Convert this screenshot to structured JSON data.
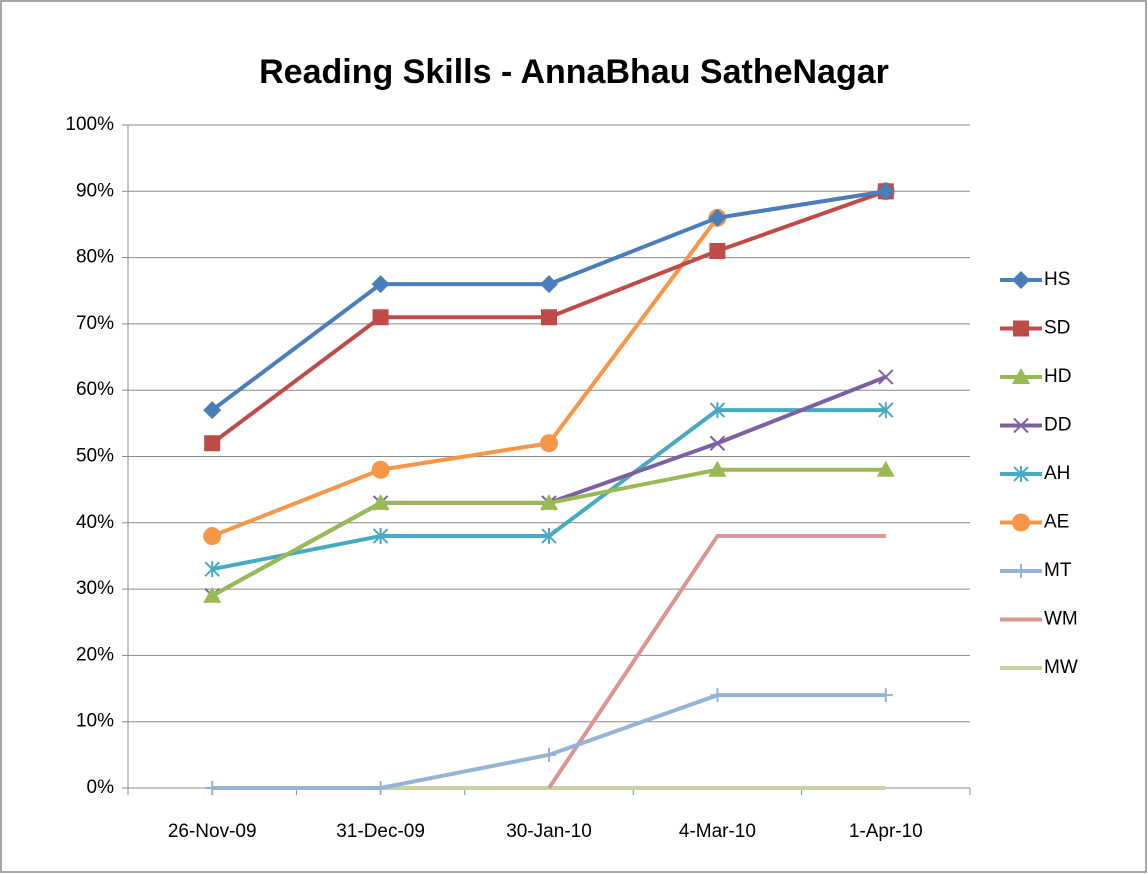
{
  "chart_data": {
    "type": "line",
    "title": "Reading Skills - AnnaBhau SatheNagar",
    "categories": [
      "26-Nov-09",
      "31-Dec-09",
      "30-Jan-10",
      "4-Mar-10",
      "1-Apr-10"
    ],
    "series": [
      {
        "name": "HS",
        "color": "#4a7ebb",
        "marker": "diamond",
        "values": [
          57,
          76,
          76,
          86,
          90
        ]
      },
      {
        "name": "SD",
        "color": "#be4b48",
        "marker": "square",
        "values": [
          52,
          71,
          71,
          81,
          90
        ]
      },
      {
        "name": "HD",
        "color": "#98b954",
        "marker": "triangle",
        "values": [
          29,
          43,
          43,
          48,
          48
        ]
      },
      {
        "name": "DD",
        "color": "#7d60a0",
        "marker": "x",
        "values": [
          29,
          43,
          43,
          52,
          62
        ]
      },
      {
        "name": "AH",
        "color": "#46aac5",
        "marker": "star",
        "values": [
          33,
          38,
          38,
          57,
          57
        ]
      },
      {
        "name": "AE",
        "color": "#f79646",
        "marker": "circle",
        "values": [
          38,
          48,
          52,
          86,
          90
        ]
      },
      {
        "name": "MT",
        "color": "#95b3d7",
        "marker": "plus",
        "values": [
          0,
          0,
          5,
          14,
          14
        ]
      },
      {
        "name": "WM",
        "color": "#d99694",
        "marker": "none",
        "values": [
          null,
          null,
          0,
          38,
          38
        ]
      },
      {
        "name": "MW",
        "color": "#c3d69b",
        "marker": "none",
        "values": [
          0,
          0,
          0,
          0,
          0
        ]
      }
    ],
    "ylim": [
      0,
      100
    ],
    "yticks": [
      {
        "value": 0,
        "label": "0%"
      },
      {
        "value": 10,
        "label": "10%"
      },
      {
        "value": 20,
        "label": "20%"
      },
      {
        "value": 30,
        "label": "30%"
      },
      {
        "value": 40,
        "label": "40%"
      },
      {
        "value": 50,
        "label": "50%"
      },
      {
        "value": 60,
        "label": "60%"
      },
      {
        "value": 70,
        "label": "70%"
      },
      {
        "value": 80,
        "label": "80%"
      },
      {
        "value": 90,
        "label": "90%"
      },
      {
        "value": 100,
        "label": "100%"
      }
    ],
    "grid": true,
    "legend": "right"
  }
}
